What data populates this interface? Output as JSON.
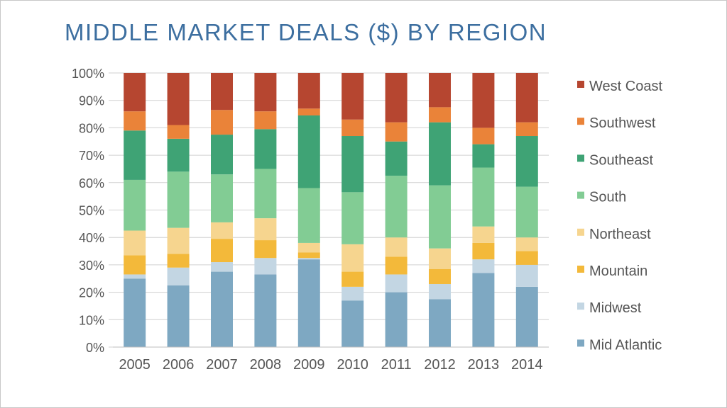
{
  "slide": {
    "title": "MIDDLE MARKET DEALS ($) BY REGION"
  },
  "chart_data": {
    "type": "bar",
    "stacked": "percent",
    "title": "MIDDLE MARKET DEALS ($) BY REGION",
    "xlabel": "",
    "ylabel": "",
    "ylim": [
      0,
      100
    ],
    "y_ticks": [
      "0%",
      "10%",
      "20%",
      "30%",
      "40%",
      "50%",
      "60%",
      "70%",
      "80%",
      "90%",
      "100%"
    ],
    "categories": [
      "2005",
      "2006",
      "2007",
      "2008",
      "2009",
      "2010",
      "2011",
      "2012",
      "2013",
      "2014"
    ],
    "legend_position": "right",
    "grid": true,
    "series": [
      {
        "name": "Mid Atlantic",
        "color": "#7ea8c2",
        "values": [
          25,
          22.5,
          27.5,
          26.5,
          32,
          17,
          20,
          17.5,
          27,
          22
        ]
      },
      {
        "name": "Midwest",
        "color": "#c3d6e3",
        "values": [
          1.5,
          6.5,
          3.5,
          6,
          0.5,
          5,
          6.5,
          5.5,
          5,
          8
        ]
      },
      {
        "name": "Mountain",
        "color": "#f3b93a",
        "values": [
          7,
          5,
          8.5,
          6.5,
          2,
          5.5,
          6.5,
          5.5,
          6,
          5
        ]
      },
      {
        "name": "Northeast",
        "color": "#f6d58f",
        "values": [
          9,
          9.5,
          6,
          8,
          3.5,
          10,
          7,
          7.5,
          6,
          5
        ]
      },
      {
        "name": "South",
        "color": "#82cc94",
        "values": [
          18.5,
          20.5,
          17.5,
          18,
          20,
          19,
          22.5,
          23,
          21.5,
          18.5
        ]
      },
      {
        "name": "Southeast",
        "color": "#3fa375",
        "values": [
          18,
          12,
          14.5,
          14.5,
          26.5,
          20.5,
          12.5,
          23,
          8.5,
          18.5
        ]
      },
      {
        "name": "Southwest",
        "color": "#ea8339",
        "values": [
          7,
          5,
          9,
          6.5,
          2.5,
          6,
          7,
          5.5,
          6,
          5
        ]
      },
      {
        "name": "West Coast",
        "color": "#b64630",
        "values": [
          14,
          19,
          13.5,
          14,
          13,
          17,
          18,
          12.5,
          20,
          18
        ]
      }
    ]
  }
}
